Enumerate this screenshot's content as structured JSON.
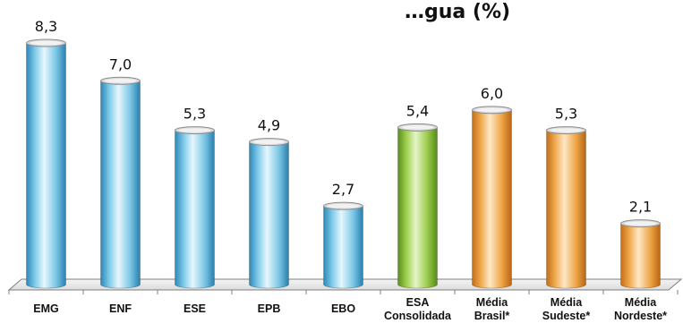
{
  "chart_data": {
    "type": "bar",
    "title": "…gua (%)",
    "categories": [
      [
        "EMG"
      ],
      [
        "ENF"
      ],
      [
        "ESE"
      ],
      [
        "EPB"
      ],
      [
        "EBO"
      ],
      [
        "ESA",
        "Consolidada"
      ],
      [
        "Média",
        "Brasil*"
      ],
      [
        "Média",
        "Sudeste*"
      ],
      [
        "Média",
        "Nordeste*"
      ]
    ],
    "values": [
      8.3,
      7.0,
      5.3,
      4.9,
      2.7,
      5.4,
      6.0,
      5.3,
      2.1
    ],
    "value_labels": [
      "8,3",
      "7,0",
      "5,3",
      "4,9",
      "2,7",
      "5,4",
      "6,0",
      "5,3",
      "2,1"
    ],
    "bar_colors": [
      "blue",
      "blue",
      "blue",
      "blue",
      "blue",
      "green",
      "orange",
      "orange",
      "orange"
    ],
    "colors": {
      "blue": "#5fb6da",
      "green": "#8cbf3f",
      "orange": "#e79a3a",
      "floor": "#ececec",
      "axis": "#7f7f7f"
    },
    "ylim": [
      0,
      8.3
    ],
    "grid": false
  }
}
